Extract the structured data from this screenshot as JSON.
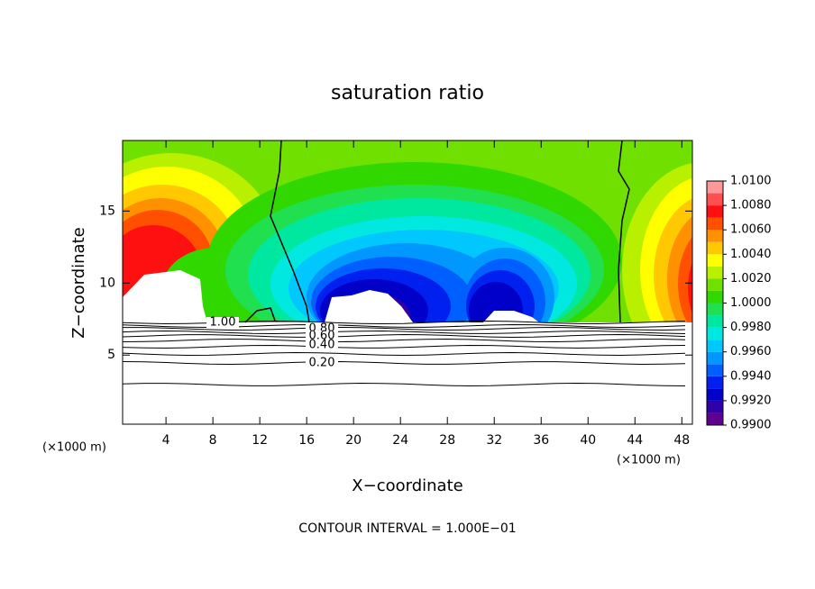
{
  "chart_data": {
    "type": "contour",
    "title": "saturation ratio",
    "x_label": "X−coordinate",
    "y_label": "Z−coordinate",
    "x_unit_left": "(×1000 m)",
    "x_unit_right": "(×1000 m)",
    "footer": "CONTOUR INTERVAL = 1.000E−01",
    "xlim": [
      0.3,
      48.9
    ],
    "xticks": [
      4,
      8,
      12,
      16,
      20,
      24,
      28,
      32,
      36,
      40,
      44,
      48
    ],
    "ylim": [
      0.2,
      19.9
    ],
    "yticks": [
      5,
      10,
      15
    ],
    "contour_levels": [
      0.1,
      0.2,
      0.3,
      0.4,
      0.5,
      0.6,
      0.7,
      0.8,
      0.9,
      1.0
    ],
    "contour_labels": [
      {
        "value": 1.0,
        "label": "1.00"
      },
      {
        "value": 0.8,
        "label": "0.80"
      },
      {
        "value": 0.6,
        "label": "0.60"
      },
      {
        "value": 0.4,
        "label": "0.40"
      },
      {
        "value": 0.2,
        "label": "0.20"
      }
    ],
    "colorbar": {
      "lim": [
        0.99,
        1.01
      ],
      "levels": [
        0.99,
        0.991,
        0.992,
        0.993,
        0.994,
        0.995,
        0.996,
        0.997,
        0.998,
        0.999,
        1.0,
        1.001,
        1.002,
        1.003,
        1.004,
        1.005,
        1.006,
        1.007,
        1.008,
        1.009
      ],
      "colors": [
        "#600090",
        "#3000a8",
        "#0000c8",
        "#0020f0",
        "#0060ff",
        "#0098ff",
        "#00c8ff",
        "#00e8e0",
        "#00e8a0",
        "#20e050",
        "#30d800",
        "#70e000",
        "#b8f000",
        "#ffff00",
        "#ffc800",
        "#ff9000",
        "#ff5000",
        "#ff1010",
        "#ff5050",
        "#ff9898"
      ],
      "ticks": [
        {
          "value": 0.99,
          "label": "0.9900"
        },
        {
          "value": 0.992,
          "label": "0.9920"
        },
        {
          "value": 0.994,
          "label": "0.9940"
        },
        {
          "value": 0.996,
          "label": "0.9960"
        },
        {
          "value": 0.998,
          "label": "0.9980"
        },
        {
          "value": 1.0,
          "label": "1.0000"
        },
        {
          "value": 1.002,
          "label": "1.0020"
        },
        {
          "value": 1.004,
          "label": "1.0040"
        },
        {
          "value": 1.006,
          "label": "1.0060"
        },
        {
          "value": 1.008,
          "label": "1.0080"
        },
        {
          "value": 1.01,
          "label": "1.0100"
        }
      ]
    }
  }
}
